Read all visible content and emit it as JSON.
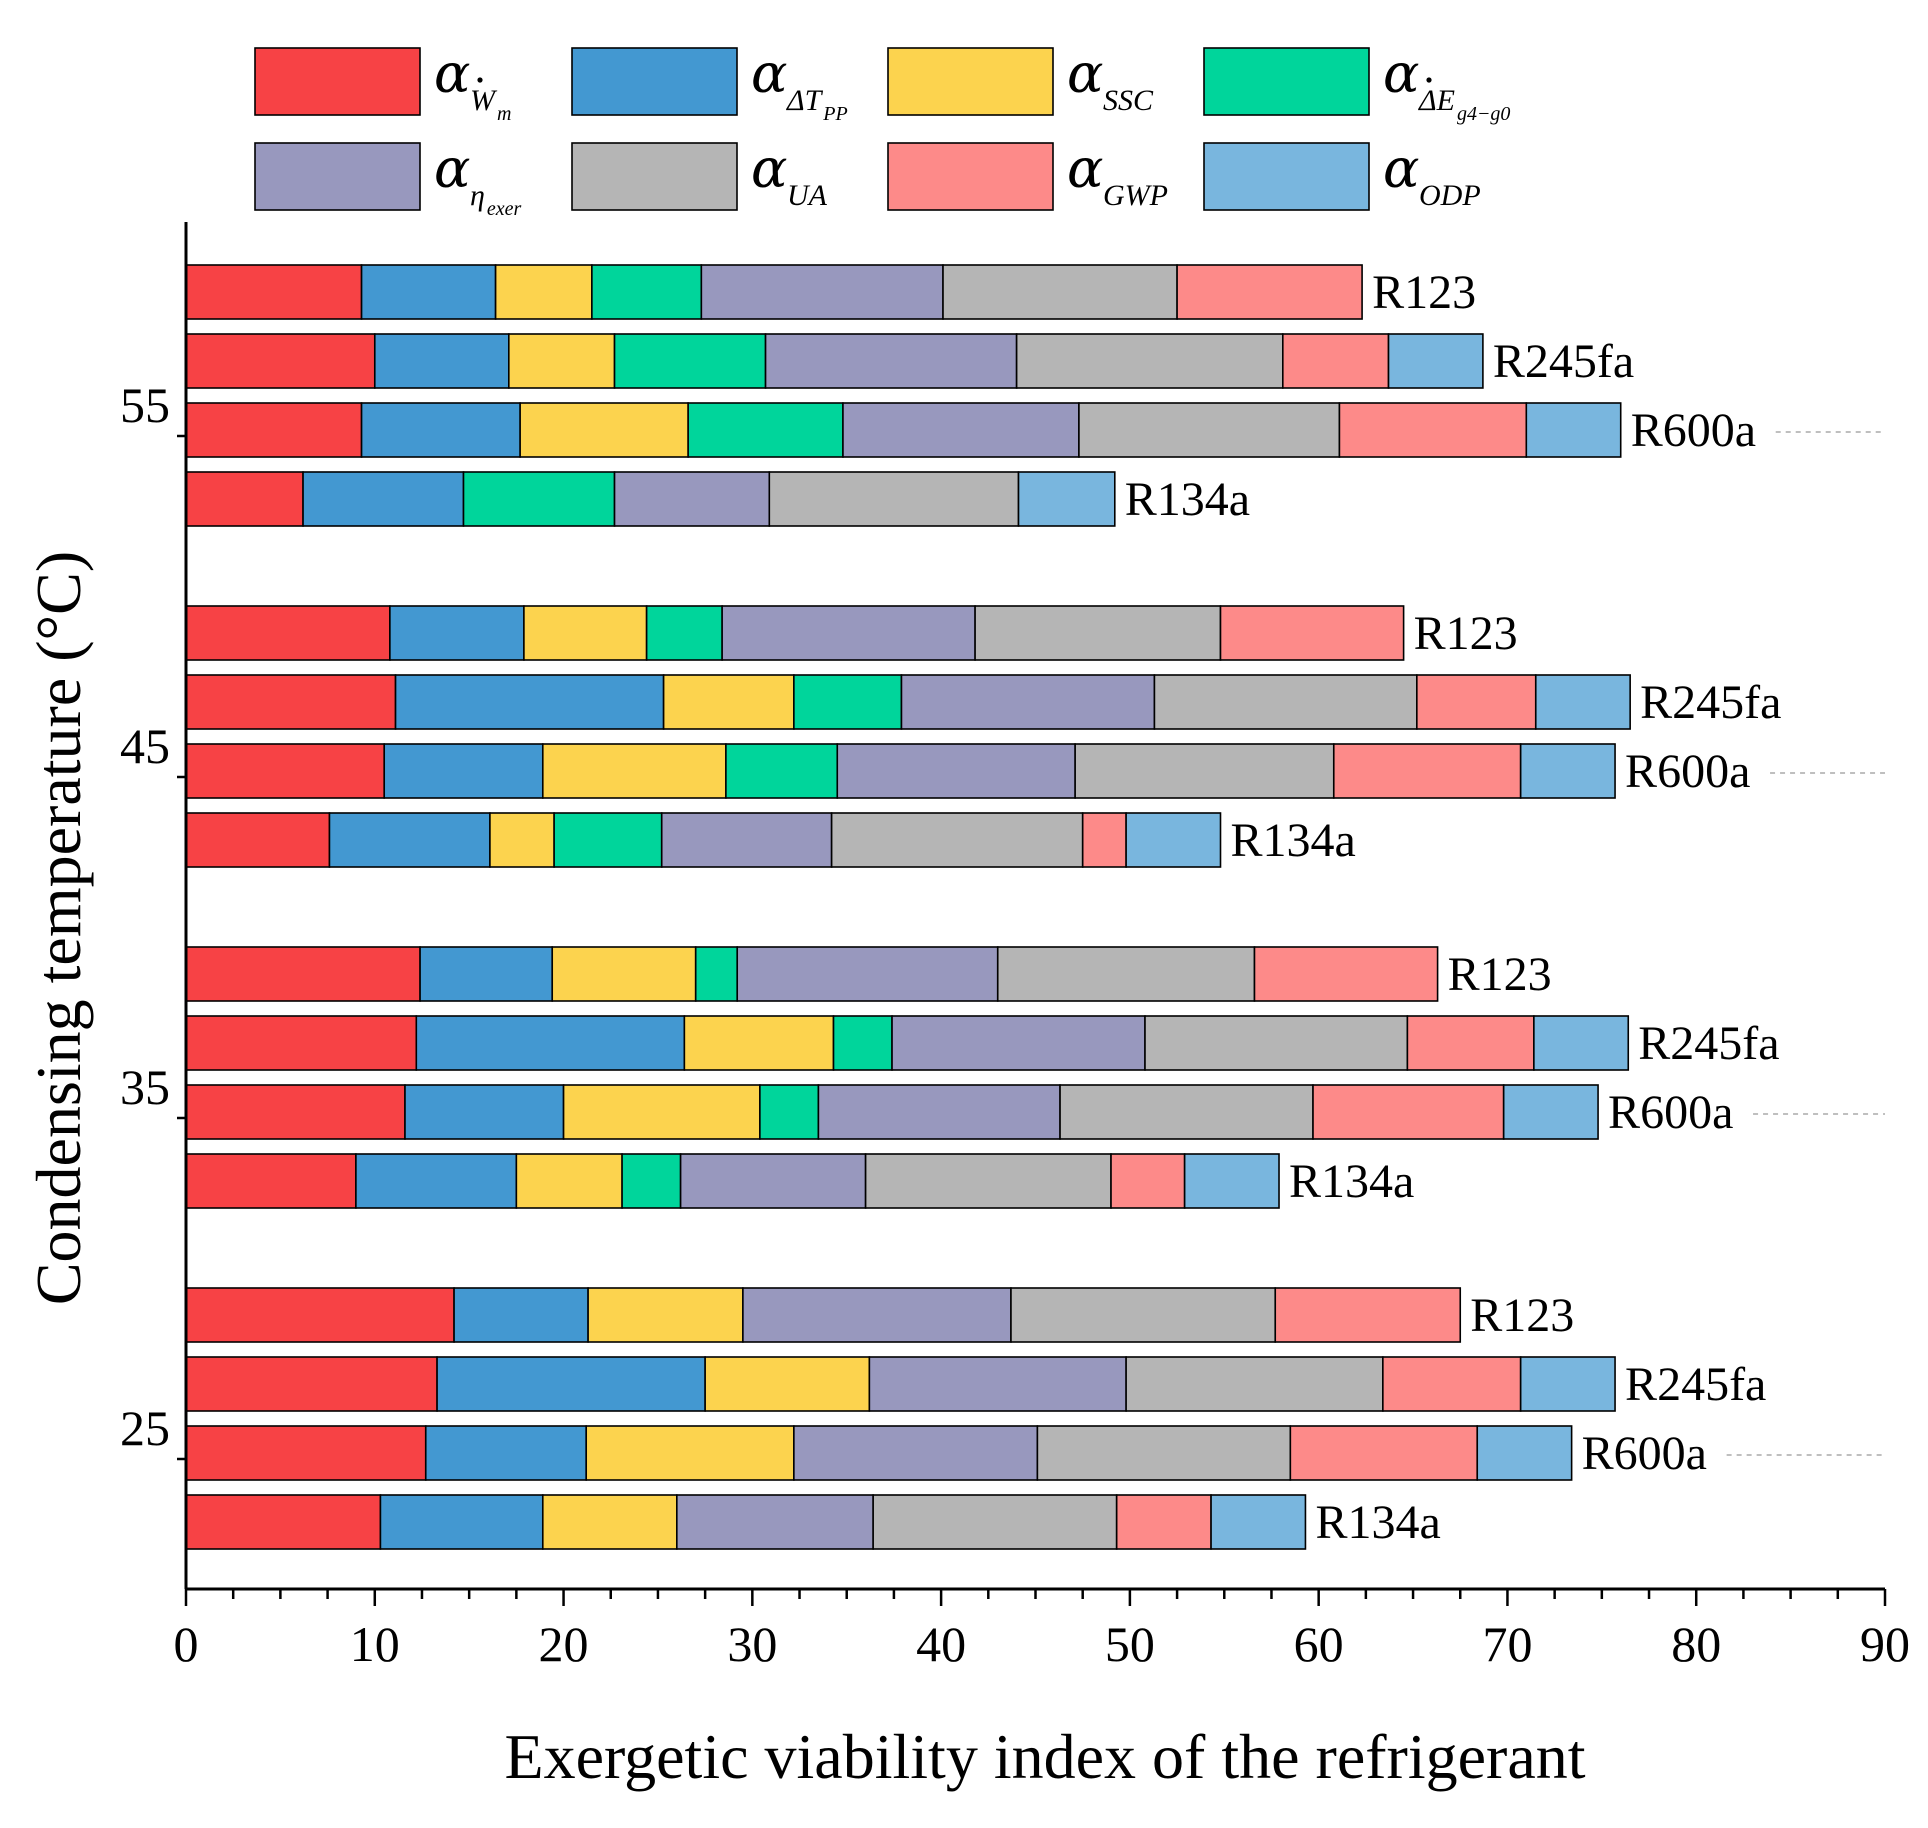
{
  "chart_data": {
    "type": "bar",
    "orientation": "horizontal",
    "stacked": true,
    "xlabel": "Exergetic viability index of the refrigerant",
    "ylabel": "Condensing temperature (°C)",
    "xlim": [
      0,
      90
    ],
    "xticks": [
      0,
      10,
      20,
      30,
      40,
      50,
      60,
      70,
      80,
      90
    ],
    "legend_position": "top",
    "components": [
      {
        "key": "Wm",
        "symbol": "α",
        "sub": "W",
        "subsub": "m",
        "dot": true,
        "color": "#F74245"
      },
      {
        "key": "dTpp",
        "symbol": "α",
        "sub": "ΔT",
        "subsub": "PP",
        "color": "#4398D1"
      },
      {
        "key": "SSC",
        "symbol": "α",
        "sub": "SSC",
        "color": "#FCD34E"
      },
      {
        "key": "dEg4g0",
        "symbol": "α",
        "sub": "ΔE",
        "subsub": "g4−g0",
        "dot": true,
        "color": "#00D59B"
      },
      {
        "key": "eta_exer",
        "symbol": "α",
        "sub": "η",
        "subsub": "exer",
        "color": "#9898BE"
      },
      {
        "key": "UA",
        "symbol": "α",
        "sub": "UA",
        "color": "#B5B5B5"
      },
      {
        "key": "GWP",
        "symbol": "α",
        "sub": "GWP",
        "color": "#FD8A89"
      },
      {
        "key": "ODP",
        "symbol": "α",
        "sub": "ODP",
        "color": "#79B6DE"
      }
    ],
    "groups": [
      {
        "temperature": "55",
        "bars": [
          {
            "refrigerant": "R123",
            "segments": [
              9.3,
              7.1,
              5.1,
              5.8,
              12.8,
              12.4,
              9.8,
              0
            ]
          },
          {
            "refrigerant": "R245fa",
            "segments": [
              10.0,
              7.1,
              5.6,
              8.0,
              13.3,
              14.1,
              5.6,
              5.0
            ]
          },
          {
            "refrigerant": "R600a",
            "segments": [
              9.3,
              8.4,
              8.9,
              8.2,
              12.5,
              13.8,
              9.9,
              5.0
            ]
          },
          {
            "refrigerant": "R134a",
            "segments": [
              6.2,
              8.5,
              0,
              8.0,
              8.2,
              13.2,
              0,
              5.1
            ]
          }
        ]
      },
      {
        "temperature": "45",
        "bars": [
          {
            "refrigerant": "R123",
            "segments": [
              10.8,
              7.1,
              6.5,
              4.0,
              13.4,
              13.0,
              9.7,
              0
            ]
          },
          {
            "refrigerant": "R245fa",
            "segments": [
              11.1,
              14.2,
              6.9,
              5.7,
              13.4,
              13.9,
              6.3,
              5.0
            ]
          },
          {
            "refrigerant": "R600a",
            "segments": [
              10.5,
              8.4,
              9.7,
              5.9,
              12.6,
              13.7,
              9.9,
              5.0
            ]
          },
          {
            "refrigerant": "R134a",
            "segments": [
              7.6,
              8.5,
              3.4,
              5.7,
              9.0,
              13.3,
              2.3,
              5.0
            ]
          }
        ]
      },
      {
        "temperature": "35",
        "bars": [
          {
            "refrigerant": "R123",
            "segments": [
              12.4,
              7.0,
              7.6,
              2.2,
              13.8,
              13.6,
              9.7,
              0
            ]
          },
          {
            "refrigerant": "R245fa",
            "segments": [
              12.2,
              14.2,
              7.9,
              3.1,
              13.4,
              13.9,
              6.7,
              5.0
            ]
          },
          {
            "refrigerant": "R600a",
            "segments": [
              11.6,
              8.4,
              10.4,
              3.1,
              12.8,
              13.4,
              10.1,
              5.0
            ]
          },
          {
            "refrigerant": "R134a",
            "segments": [
              9.0,
              8.5,
              5.6,
              3.1,
              9.8,
              13.0,
              3.9,
              5.0
            ]
          }
        ]
      },
      {
        "temperature": "25",
        "bars": [
          {
            "refrigerant": "R123",
            "segments": [
              14.2,
              7.1,
              8.2,
              0,
              14.2,
              14.0,
              9.8,
              0
            ]
          },
          {
            "refrigerant": "R245fa",
            "segments": [
              13.3,
              14.2,
              8.7,
              0,
              13.6,
              13.6,
              7.3,
              5.0
            ]
          },
          {
            "refrigerant": "R600a",
            "segments": [
              12.7,
              8.5,
              11.0,
              0,
              12.9,
              13.4,
              9.9,
              5.0
            ]
          },
          {
            "refrigerant": "R134a",
            "segments": [
              10.3,
              8.6,
              7.1,
              0,
              10.4,
              12.9,
              5.0,
              5.0
            ]
          }
        ]
      }
    ]
  }
}
